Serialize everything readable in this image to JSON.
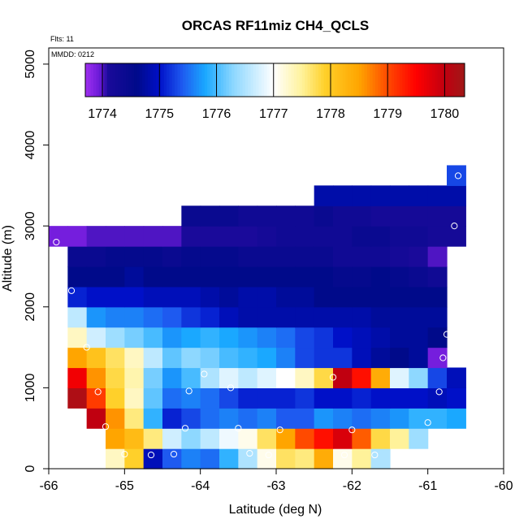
{
  "chart_data": {
    "type": "heatmap",
    "title": "ORCAS RF11miz CH4_QCLS",
    "xlabel": "Latitude (deg N)",
    "ylabel": "Altitude (m)",
    "notes": {
      "flights": "Flts: 11",
      "mmdd": "MMDD: 0212"
    },
    "xlim": [
      -66,
      -60
    ],
    "ylim": [
      0,
      5200
    ],
    "xticks": [
      "-66",
      "-65",
      "-64",
      "-63",
      "-62",
      "-61",
      "-60"
    ],
    "yticks": [
      "0",
      "1000",
      "2000",
      "3000",
      "4000",
      "5000"
    ],
    "colorbar": {
      "min": 1773.7,
      "max": 1780.35,
      "ticks": [
        "1774",
        "1775",
        "1776",
        "1777",
        "1778",
        "1779",
        "1780"
      ],
      "stops": [
        [
          1773.7,
          "#a030f0"
        ],
        [
          1773.95,
          "#6a1ad8"
        ],
        [
          1774.1,
          "#1a0a9a"
        ],
        [
          1774.6,
          "#000a8a"
        ],
        [
          1775.0,
          "#0010c8"
        ],
        [
          1775.4,
          "#1e5af0"
        ],
        [
          1775.8,
          "#1aa8ff"
        ],
        [
          1776.3,
          "#8ed8ff"
        ],
        [
          1777.0,
          "#ffffff"
        ],
        [
          1777.5,
          "#fff29a"
        ],
        [
          1777.9,
          "#ffd02a"
        ],
        [
          1778.5,
          "#ffa500"
        ],
        [
          1779.0,
          "#ff4a00"
        ],
        [
          1779.5,
          "#ff0000"
        ],
        [
          1780.0,
          "#c00010"
        ],
        [
          1780.35,
          "#a01818"
        ]
      ]
    },
    "grid": {
      "lon_start": -66,
      "lon_step": 0.25,
      "alt_bottom": 0,
      "alt_step": 250
    },
    "rows": [
      {
        "alt": 0,
        "start": 3,
        "values": [
          1777.3,
          1777.9,
          1774.9,
          1775.4,
          1775.6,
          1775.5,
          1775.9,
          1776.5,
          1777.1,
          1777.7,
          1777.6,
          1778.4,
          1777.1,
          1777.5,
          1776.5
        ]
      },
      {
        "alt": 250,
        "start": 3,
        "values": [
          1778.5,
          1778.2,
          1777.6,
          1776.7,
          1776.3,
          1776.6,
          1776.9,
          1777.1,
          1777.7,
          1778.5,
          1779.0,
          1779.4,
          1779.8,
          1778.9,
          1777.8,
          1777.5,
          1776.4
        ]
      },
      {
        "alt": 500,
        "start": 2,
        "values": [
          1780.0,
          1778.6,
          1777.6,
          1775.9,
          1775.1,
          1775.3,
          1775.5,
          1775.6,
          1775.5,
          1775.6,
          1775.4,
          1775.4,
          1775.7,
          1775.6,
          1775.5,
          1775.6,
          1775.7,
          1775.9,
          1775.9,
          1775.8
        ]
      },
      {
        "alt": 750,
        "start": 1,
        "values": [
          1780.2,
          1779.1,
          1777.9,
          1777.3,
          1776.1,
          1775.5,
          1775.6,
          1775.5,
          1775.3,
          1775.1,
          1775.1,
          1775.1,
          1775.2,
          1775.0,
          1775.0,
          1775.1,
          1775.0,
          1775.0,
          1775.0,
          1774.9,
          1775.0
        ]
      },
      {
        "alt": 1000,
        "start": 1,
        "values": [
          1779.6,
          1778.6,
          1777.8,
          1777.4,
          1776.2,
          1775.7,
          1776.0,
          1776.5,
          1776.8,
          1776.6,
          1776.8,
          1777.0,
          1777.3,
          1777.8,
          1780.0,
          1779.4,
          1778.4,
          1776.8,
          1776.3,
          1775.3,
          1774.9
        ]
      },
      {
        "alt": 1250,
        "start": 1,
        "values": [
          1778.5,
          1778.1,
          1777.7,
          1777.3,
          1776.6,
          1776.1,
          1776.3,
          1776.2,
          1776.0,
          1775.9,
          1775.8,
          1775.6,
          1775.3,
          1775.2,
          1775.2,
          1774.9,
          1774.7,
          1774.6,
          1774.7,
          1773.9
        ]
      },
      {
        "alt": 1500,
        "start": 1,
        "values": [
          1777.3,
          1776.7,
          1776.4,
          1776.2,
          1776.0,
          1775.7,
          1775.8,
          1775.9,
          1775.8,
          1775.7,
          1775.6,
          1775.5,
          1775.3,
          1775.2,
          1775.0,
          1774.9,
          1774.8,
          1774.7,
          1774.7,
          1774.6
        ]
      },
      {
        "alt": 1750,
        "start": 1,
        "values": [
          1776.6,
          1775.7,
          1775.6,
          1775.6,
          1775.5,
          1775.4,
          1775.2,
          1775.1,
          1774.9,
          1774.8,
          1774.8,
          1774.8,
          1774.8,
          1774.8,
          1774.8,
          1774.8,
          1774.7,
          1774.7,
          1774.7,
          1774.7
        ]
      },
      {
        "alt": 2000,
        "start": 1,
        "values": [
          1775.1,
          1775.0,
          1775.0,
          1775.0,
          1774.9,
          1774.9,
          1774.9,
          1774.8,
          1774.7,
          1774.8,
          1774.8,
          1774.7,
          1774.7,
          1774.6,
          1774.6,
          1774.6,
          1774.6,
          1774.6,
          1774.6,
          1774.6
        ]
      },
      {
        "alt": 2250,
        "start": 1,
        "values": [
          1774.6,
          1774.6,
          1774.6,
          1774.7,
          1774.6,
          1774.6,
          1774.6,
          1774.6,
          1774.6,
          1774.6,
          1774.6,
          1774.6,
          1774.6,
          1774.6,
          1774.5,
          1774.5,
          1774.6,
          1774.5,
          1774.4,
          1774.3
        ]
      },
      {
        "alt": 2500,
        "start": 1,
        "values": [
          1774.4,
          1774.4,
          1774.5,
          1774.5,
          1774.5,
          1774.4,
          1774.5,
          1774.5,
          1774.5,
          1774.4,
          1774.4,
          1774.4,
          1774.4,
          1774.4,
          1774.3,
          1774.3,
          1774.3,
          1774.2,
          1774.1,
          1774.0
        ]
      },
      {
        "alt": 2750,
        "start": 0,
        "values": [
          1773.9,
          1773.9,
          1774.0,
          1774.0,
          1774.0,
          1774.0,
          1774.0,
          1774.1,
          1774.1,
          1774.1,
          1774.1,
          1774.2,
          1774.3,
          1774.3,
          1774.3,
          1774.3,
          1774.4,
          1774.4,
          1774.3,
          1774.3,
          1774.2,
          1774.2
        ]
      },
      {
        "alt": 3000,
        "start": 7,
        "values": [
          1774.4,
          1774.4,
          1774.4,
          1774.3,
          1774.3,
          1774.3,
          1774.3,
          1774.4,
          1774.3,
          1774.3,
          1774.2,
          1774.2,
          1774.2,
          1774.2,
          1774.2
        ]
      },
      {
        "alt": 3250,
        "start": 14,
        "values": [
          1774.8,
          1774.8,
          1774.8,
          1774.8,
          1774.8,
          1774.8,
          1774.8,
          1774.8
        ]
      },
      {
        "alt": 3500,
        "start": 21,
        "values": [
          1775.3
        ]
      }
    ],
    "points": [
      [
        -65.9,
        2800
      ],
      [
        -65.7,
        2200
      ],
      [
        -65.5,
        1500
      ],
      [
        -65.35,
        950
      ],
      [
        -65.25,
        520
      ],
      [
        -65.0,
        180
      ],
      [
        -64.65,
        170
      ],
      [
        -64.35,
        180
      ],
      [
        -64.2,
        500
      ],
      [
        -64.15,
        960
      ],
      [
        -63.95,
        1170
      ],
      [
        -63.6,
        1000
      ],
      [
        -63.5,
        500
      ],
      [
        -63.35,
        190
      ],
      [
        -63.1,
        170
      ],
      [
        -62.95,
        480
      ],
      [
        -62.25,
        1130
      ],
      [
        -62.1,
        170
      ],
      [
        -62.0,
        480
      ],
      [
        -61.7,
        170
      ],
      [
        -61.3,
        170
      ],
      [
        -61.0,
        570
      ],
      [
        -60.85,
        950
      ],
      [
        -60.8,
        1370
      ],
      [
        -60.75,
        1660
      ],
      [
        -60.65,
        3000
      ],
      [
        -60.6,
        3620
      ]
    ]
  }
}
